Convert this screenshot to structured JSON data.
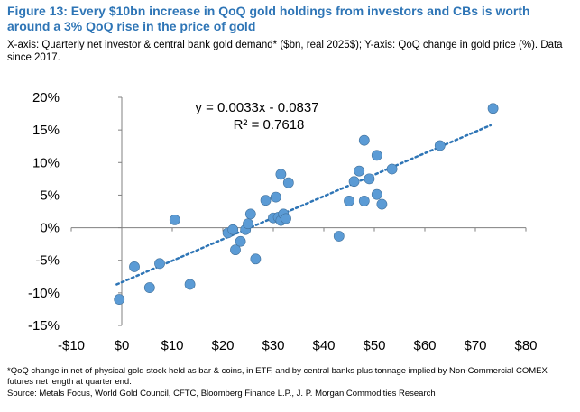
{
  "header": {
    "title": "Figure 13: Every $10bn increase in QoQ gold holdings from investors and CBs is worth around a 3% QoQ rise in the price of gold",
    "subtitle": "X-axis: Quarterly net investor & central bank gold demand* ($bn, real 2025$); Y-axis: QoQ change in gold price (%). Data since 2017."
  },
  "footer": {
    "note": "*QoQ change in net of physical gold stock held as bar & coins, in ETF, and by central banks plus tonnage implied by Non-Commercial COMEX futures net length at quarter end.",
    "source": "Source:  Metals Focus, World Gold Council, CFTC, Bloomberg Finance L.P., J. P. Morgan Commodities Research"
  },
  "chart_data": {
    "type": "scatter",
    "title": "",
    "xlabel": "",
    "ylabel": "",
    "xlim": [
      -10,
      80
    ],
    "ylim": [
      -15,
      20
    ],
    "x_ticks": [
      -10,
      0,
      10,
      20,
      30,
      40,
      50,
      60,
      70,
      80
    ],
    "x_tick_labels": [
      "-$10",
      "$0",
      "$10",
      "$20",
      "$30",
      "$40",
      "$50",
      "$60",
      "$70",
      "$80"
    ],
    "y_ticks": [
      20,
      15,
      10,
      5,
      0,
      -5,
      -10,
      -15
    ],
    "y_tick_labels": [
      "20%",
      "15%",
      "10%",
      "5%",
      "0%",
      "-5%",
      "-10%",
      "-15%"
    ],
    "grid": false,
    "marker_color": "#5B9BD5",
    "trendline_color": "#2E75B6",
    "trendline": {
      "slope": 0.33,
      "intercept": -8.37,
      "x_range": [
        -1,
        73
      ]
    },
    "annotations": [
      "y = 0.0033x - 0.0837",
      "R² = 0.7618"
    ],
    "points": [
      [
        -0.5,
        -11
      ],
      [
        2.5,
        -6
      ],
      [
        5.5,
        -9.2
      ],
      [
        7.5,
        -5.5
      ],
      [
        10.5,
        1.2
      ],
      [
        13.5,
        -8.7
      ],
      [
        21,
        -0.8
      ],
      [
        22,
        -0.3
      ],
      [
        22.5,
        -3.4
      ],
      [
        23.5,
        -2.1
      ],
      [
        24.5,
        -0.3
      ],
      [
        25,
        0.6
      ],
      [
        25.5,
        2.1
      ],
      [
        26.5,
        -4.8
      ],
      [
        28.5,
        4.2
      ],
      [
        30,
        1.5
      ],
      [
        30.5,
        4.7
      ],
      [
        31,
        1.6
      ],
      [
        31.5,
        8.2
      ],
      [
        31.5,
        1.1
      ],
      [
        32,
        2.1
      ],
      [
        32.5,
        1.4
      ],
      [
        33,
        6.9
      ],
      [
        43,
        -1.3
      ],
      [
        45,
        4.1
      ],
      [
        46,
        7.1
      ],
      [
        47,
        8.7
      ],
      [
        48,
        13.4
      ],
      [
        48,
        4.1
      ],
      [
        49,
        7.5
      ],
      [
        50.5,
        11.1
      ],
      [
        50.5,
        5.1
      ],
      [
        51.5,
        3.6
      ],
      [
        53.5,
        9
      ],
      [
        63,
        12.6
      ],
      [
        73.5,
        18.3
      ]
    ]
  }
}
